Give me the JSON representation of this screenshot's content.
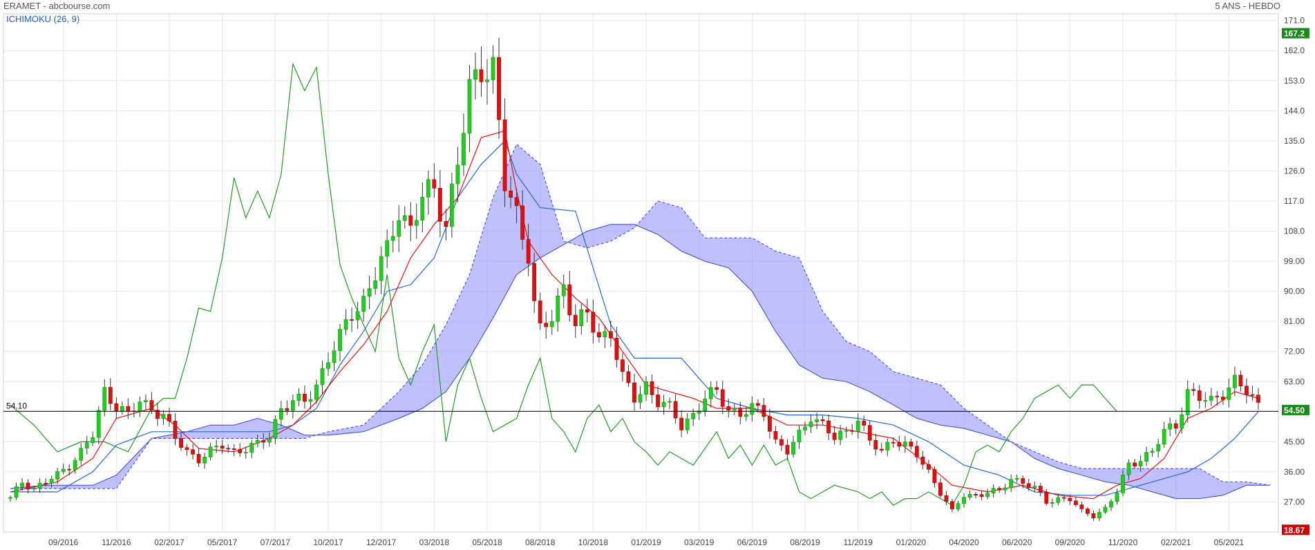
{
  "header": {
    "title": "ERAMET - abcbourse.com",
    "period": "5 ANS - HEBDO",
    "indicator": "ICHIMOKU (26, 9)"
  },
  "badges": {
    "high": {
      "label": "167.2",
      "value": 167.2,
      "color": "#1a8a1a"
    },
    "last": {
      "label": "54.50",
      "value": 54.5,
      "color": "#1a8a1a"
    },
    "low": {
      "label": "18.67",
      "value": 18.67,
      "color": "#cc0000"
    }
  },
  "reference": {
    "label": "54.10",
    "value": 54.1
  },
  "chart_data": {
    "type": "candlestick",
    "title": "ERAMET - abcbourse.com",
    "ylim": [
      18,
      173
    ],
    "y_ticks": [
      "171.0",
      "162.0",
      "153.0",
      "144.0",
      "135.0",
      "126.0",
      "117.0",
      "108.0",
      "99.00",
      "90.00",
      "81.00",
      "72.00",
      "63.00",
      "54.50",
      "45.00",
      "36.00",
      "27.00",
      "18.67"
    ],
    "x_ticks": [
      {
        "label": "09/2016",
        "week": 9
      },
      {
        "label": "11/2016",
        "week": 18
      },
      {
        "label": "02/2017",
        "week": 27
      },
      {
        "label": "05/2017",
        "week": 36
      },
      {
        "label": "07/2017",
        "week": 45
      },
      {
        "label": "10/2017",
        "week": 54
      },
      {
        "label": "12/2017",
        "week": 63
      },
      {
        "label": "03/2018",
        "week": 72
      },
      {
        "label": "05/2018",
        "week": 81
      },
      {
        "label": "08/2018",
        "week": 90
      },
      {
        "label": "10/2018",
        "week": 99
      },
      {
        "label": "01/2019",
        "week": 108
      },
      {
        "label": "03/2019",
        "week": 117
      },
      {
        "label": "06/2019",
        "week": 126
      },
      {
        "label": "08/2019",
        "week": 135
      },
      {
        "label": "11/2019",
        "week": 144
      },
      {
        "label": "01/2020",
        "week": 153
      },
      {
        "label": "04/2020",
        "week": 162
      },
      {
        "label": "06/2020",
        "week": 171
      },
      {
        "label": "09/2020",
        "week": 180
      },
      {
        "label": "11/2020",
        "week": 189
      },
      {
        "label": "02/2021",
        "week": 198
      },
      {
        "label": "05/2021",
        "week": 207
      }
    ],
    "series_colors": {
      "up": "#22cc22",
      "down": "#dd1111",
      "tenkan": "#dd1111",
      "kijun": "#2266cc",
      "chikou": "#229922",
      "cloud_fill": "#9999ff",
      "cloud_line": "#3344cc"
    },
    "close_anchors": [
      [
        0,
        28
      ],
      [
        2,
        33
      ],
      [
        4,
        31
      ],
      [
        6,
        33
      ],
      [
        8,
        35
      ],
      [
        10,
        38
      ],
      [
        12,
        42
      ],
      [
        14,
        47
      ],
      [
        16,
        60
      ],
      [
        18,
        56
      ],
      [
        20,
        53
      ],
      [
        22,
        57
      ],
      [
        24,
        55
      ],
      [
        26,
        53
      ],
      [
        28,
        46
      ],
      [
        30,
        42
      ],
      [
        32,
        40
      ],
      [
        34,
        42
      ],
      [
        36,
        44
      ],
      [
        38,
        42
      ],
      [
        40,
        43
      ],
      [
        42,
        44
      ],
      [
        44,
        47
      ],
      [
        46,
        55
      ],
      [
        48,
        57
      ],
      [
        50,
        57
      ],
      [
        52,
        62
      ],
      [
        54,
        70
      ],
      [
        56,
        76
      ],
      [
        58,
        84
      ],
      [
        60,
        87
      ],
      [
        62,
        95
      ],
      [
        64,
        102
      ],
      [
        66,
        115
      ],
      [
        68,
        108
      ],
      [
        70,
        118
      ],
      [
        72,
        121
      ],
      [
        74,
        110
      ],
      [
        76,
        128
      ],
      [
        78,
        150
      ],
      [
        80,
        158
      ],
      [
        82,
        156
      ],
      [
        84,
        122
      ],
      [
        86,
        113
      ],
      [
        88,
        102
      ],
      [
        89,
        86
      ],
      [
        90,
        78
      ],
      [
        92,
        82
      ],
      [
        94,
        92
      ],
      [
        96,
        80
      ],
      [
        98,
        83
      ],
      [
        100,
        76
      ],
      [
        102,
        78
      ],
      [
        104,
        64
      ],
      [
        106,
        58
      ],
      [
        108,
        62
      ],
      [
        110,
        57
      ],
      [
        112,
        55
      ],
      [
        114,
        50
      ],
      [
        116,
        53
      ],
      [
        118,
        58
      ],
      [
        120,
        60
      ],
      [
        122,
        55
      ],
      [
        124,
        53
      ],
      [
        126,
        55
      ],
      [
        128,
        54
      ],
      [
        130,
        45
      ],
      [
        132,
        42
      ],
      [
        134,
        47
      ],
      [
        136,
        53
      ],
      [
        138,
        50
      ],
      [
        140,
        46
      ],
      [
        142,
        48
      ],
      [
        144,
        52
      ],
      [
        146,
        45
      ],
      [
        148,
        42
      ],
      [
        150,
        46
      ],
      [
        152,
        44
      ],
      [
        154,
        41
      ],
      [
        156,
        36
      ],
      [
        158,
        30
      ],
      [
        160,
        24
      ],
      [
        162,
        29
      ],
      [
        164,
        29
      ],
      [
        166,
        30
      ],
      [
        168,
        30
      ],
      [
        170,
        34
      ],
      [
        172,
        33
      ],
      [
        174,
        31
      ],
      [
        176,
        27
      ],
      [
        178,
        28
      ],
      [
        180,
        28
      ],
      [
        182,
        24
      ],
      [
        184,
        23
      ],
      [
        186,
        25
      ],
      [
        188,
        30
      ],
      [
        190,
        38
      ],
      [
        192,
        40
      ],
      [
        194,
        42
      ],
      [
        196,
        48
      ],
      [
        198,
        50
      ],
      [
        200,
        60
      ],
      [
        202,
        58
      ],
      [
        204,
        57
      ],
      [
        206,
        60
      ],
      [
        208,
        63
      ],
      [
        210,
        60
      ],
      [
        212,
        56
      ]
    ],
    "tenkan_anchors": [
      [
        0,
        30
      ],
      [
        8,
        33
      ],
      [
        14,
        40
      ],
      [
        18,
        52
      ],
      [
        24,
        55
      ],
      [
        28,
        50
      ],
      [
        32,
        43
      ],
      [
        38,
        42
      ],
      [
        44,
        46
      ],
      [
        48,
        50
      ],
      [
        52,
        57
      ],
      [
        56,
        66
      ],
      [
        60,
        74
      ],
      [
        64,
        84
      ],
      [
        68,
        100
      ],
      [
        72,
        110
      ],
      [
        76,
        118
      ],
      [
        80,
        136
      ],
      [
        84,
        138
      ],
      [
        86,
        120
      ],
      [
        88,
        105
      ],
      [
        92,
        95
      ],
      [
        96,
        88
      ],
      [
        100,
        82
      ],
      [
        104,
        72
      ],
      [
        108,
        62
      ],
      [
        112,
        60
      ],
      [
        116,
        58
      ],
      [
        120,
        55
      ],
      [
        126,
        55
      ],
      [
        132,
        50
      ],
      [
        138,
        50
      ],
      [
        144,
        48
      ],
      [
        150,
        46
      ],
      [
        156,
        38
      ],
      [
        160,
        32
      ],
      [
        166,
        30
      ],
      [
        172,
        32
      ],
      [
        178,
        29
      ],
      [
        184,
        28
      ],
      [
        188,
        32
      ],
      [
        192,
        34
      ],
      [
        196,
        40
      ],
      [
        200,
        52
      ],
      [
        204,
        55
      ],
      [
        208,
        60
      ],
      [
        212,
        58
      ]
    ],
    "kijun_anchors": [
      [
        0,
        30
      ],
      [
        8,
        30
      ],
      [
        14,
        36
      ],
      [
        18,
        44
      ],
      [
        24,
        48
      ],
      [
        28,
        48
      ],
      [
        34,
        48
      ],
      [
        40,
        48
      ],
      [
        44,
        48
      ],
      [
        48,
        50
      ],
      [
        52,
        55
      ],
      [
        56,
        68
      ],
      [
        60,
        78
      ],
      [
        64,
        90
      ],
      [
        68,
        92
      ],
      [
        72,
        100
      ],
      [
        76,
        118
      ],
      [
        80,
        128
      ],
      [
        84,
        135
      ],
      [
        86,
        125
      ],
      [
        90,
        115
      ],
      [
        96,
        114
      ],
      [
        102,
        80
      ],
      [
        106,
        70
      ],
      [
        114,
        70
      ],
      [
        120,
        58
      ],
      [
        126,
        55
      ],
      [
        132,
        53
      ],
      [
        138,
        53
      ],
      [
        144,
        52
      ],
      [
        150,
        50
      ],
      [
        156,
        45
      ],
      [
        162,
        38
      ],
      [
        168,
        35
      ],
      [
        174,
        30
      ],
      [
        180,
        29
      ],
      [
        186,
        29
      ],
      [
        190,
        31
      ],
      [
        196,
        34
      ],
      [
        200,
        36
      ],
      [
        204,
        40
      ],
      [
        208,
        46
      ],
      [
        212,
        54
      ]
    ],
    "chikou_anchors": [
      [
        0,
        56
      ],
      [
        4,
        50
      ],
      [
        8,
        42
      ],
      [
        12,
        45
      ],
      [
        16,
        45
      ],
      [
        20,
        42
      ],
      [
        24,
        55
      ],
      [
        26,
        58
      ],
      [
        28,
        58
      ],
      [
        30,
        70
      ],
      [
        32,
        85
      ],
      [
        34,
        84
      ],
      [
        36,
        100
      ],
      [
        38,
        124
      ],
      [
        40,
        112
      ],
      [
        42,
        120
      ],
      [
        44,
        112
      ],
      [
        46,
        125
      ],
      [
        48,
        158
      ],
      [
        50,
        150
      ],
      [
        52,
        157
      ],
      [
        54,
        125
      ],
      [
        56,
        98
      ],
      [
        58,
        88
      ],
      [
        60,
        80
      ],
      [
        62,
        72
      ],
      [
        64,
        95
      ],
      [
        66,
        70
      ],
      [
        68,
        62
      ],
      [
        70,
        72
      ],
      [
        72,
        80
      ],
      [
        74,
        45
      ],
      [
        76,
        62
      ],
      [
        78,
        70
      ],
      [
        80,
        58
      ],
      [
        82,
        48
      ],
      [
        84,
        50
      ],
      [
        86,
        52
      ],
      [
        88,
        62
      ],
      [
        90,
        70
      ],
      [
        92,
        52
      ],
      [
        94,
        48
      ],
      [
        96,
        42
      ],
      [
        98,
        52
      ],
      [
        100,
        56
      ],
      [
        102,
        48
      ],
      [
        104,
        52
      ],
      [
        106,
        45
      ],
      [
        108,
        42
      ],
      [
        110,
        38
      ],
      [
        112,
        42
      ],
      [
        114,
        40
      ],
      [
        116,
        38
      ],
      [
        118,
        43
      ],
      [
        120,
        48
      ],
      [
        122,
        40
      ],
      [
        124,
        44
      ],
      [
        126,
        38
      ],
      [
        128,
        44
      ],
      [
        130,
        38
      ],
      [
        132,
        40
      ],
      [
        134,
        30
      ],
      [
        136,
        28
      ],
      [
        138,
        30
      ],
      [
        140,
        32
      ],
      [
        142,
        31
      ],
      [
        144,
        30
      ],
      [
        146,
        28
      ],
      [
        148,
        30
      ],
      [
        150,
        26
      ],
      [
        152,
        28
      ],
      [
        154,
        28
      ],
      [
        156,
        30
      ],
      [
        158,
        28
      ],
      [
        160,
        26
      ],
      [
        162,
        32
      ],
      [
        164,
        42
      ],
      [
        166,
        44
      ],
      [
        168,
        42
      ],
      [
        170,
        48
      ],
      [
        172,
        52
      ],
      [
        174,
        58
      ],
      [
        176,
        60
      ],
      [
        178,
        62
      ],
      [
        180,
        58
      ],
      [
        182,
        62
      ],
      [
        184,
        62
      ],
      [
        186,
        58
      ],
      [
        188,
        54
      ]
    ],
    "span_a_anchors": [
      [
        0,
        31
      ],
      [
        6,
        32
      ],
      [
        10,
        32
      ],
      [
        14,
        32
      ],
      [
        18,
        35
      ],
      [
        24,
        46
      ],
      [
        30,
        48
      ],
      [
        34,
        50
      ],
      [
        38,
        50
      ],
      [
        42,
        52
      ],
      [
        46,
        50
      ],
      [
        50,
        47
      ],
      [
        54,
        47
      ],
      [
        60,
        48
      ],
      [
        66,
        52
      ],
      [
        70,
        55
      ],
      [
        74,
        60
      ],
      [
        78,
        70
      ],
      [
        82,
        82
      ],
      [
        86,
        95
      ],
      [
        90,
        100
      ],
      [
        94,
        104
      ],
      [
        98,
        108
      ],
      [
        102,
        110
      ],
      [
        106,
        110
      ],
      [
        110,
        107
      ],
      [
        114,
        102
      ],
      [
        118,
        99
      ],
      [
        122,
        97
      ],
      [
        126,
        90
      ],
      [
        130,
        78
      ],
      [
        134,
        68
      ],
      [
        138,
        64
      ],
      [
        142,
        63
      ],
      [
        146,
        60
      ],
      [
        150,
        56
      ],
      [
        154,
        52
      ],
      [
        158,
        50
      ],
      [
        162,
        49
      ],
      [
        166,
        47
      ],
      [
        170,
        45
      ],
      [
        174,
        40
      ],
      [
        178,
        37
      ],
      [
        182,
        35
      ],
      [
        186,
        33
      ],
      [
        190,
        32
      ],
      [
        194,
        30
      ],
      [
        198,
        28
      ],
      [
        202,
        28
      ],
      [
        206,
        29
      ],
      [
        210,
        32
      ],
      [
        214,
        32
      ]
    ],
    "span_b_anchors": [
      [
        0,
        31
      ],
      [
        6,
        31
      ],
      [
        10,
        31
      ],
      [
        14,
        31
      ],
      [
        18,
        31
      ],
      [
        24,
        46
      ],
      [
        30,
        46
      ],
      [
        34,
        46
      ],
      [
        38,
        46
      ],
      [
        42,
        46
      ],
      [
        46,
        46
      ],
      [
        50,
        46
      ],
      [
        54,
        48
      ],
      [
        60,
        50
      ],
      [
        66,
        60
      ],
      [
        70,
        68
      ],
      [
        74,
        80
      ],
      [
        78,
        95
      ],
      [
        82,
        118
      ],
      [
        86,
        134
      ],
      [
        90,
        128
      ],
      [
        94,
        105
      ],
      [
        98,
        103
      ],
      [
        102,
        105
      ],
      [
        106,
        109
      ],
      [
        110,
        117
      ],
      [
        114,
        115
      ],
      [
        118,
        106
      ],
      [
        122,
        106
      ],
      [
        126,
        106
      ],
      [
        130,
        102
      ],
      [
        134,
        100
      ],
      [
        138,
        84
      ],
      [
        142,
        75
      ],
      [
        146,
        72
      ],
      [
        150,
        66
      ],
      [
        154,
        64
      ],
      [
        158,
        62
      ],
      [
        162,
        55
      ],
      [
        166,
        50
      ],
      [
        170,
        45
      ],
      [
        174,
        42
      ],
      [
        178,
        39
      ],
      [
        182,
        37
      ],
      [
        186,
        37
      ],
      [
        190,
        37
      ],
      [
        194,
        37
      ],
      [
        198,
        37
      ],
      [
        202,
        37
      ],
      [
        206,
        33
      ],
      [
        210,
        33
      ],
      [
        214,
        32
      ]
    ]
  }
}
